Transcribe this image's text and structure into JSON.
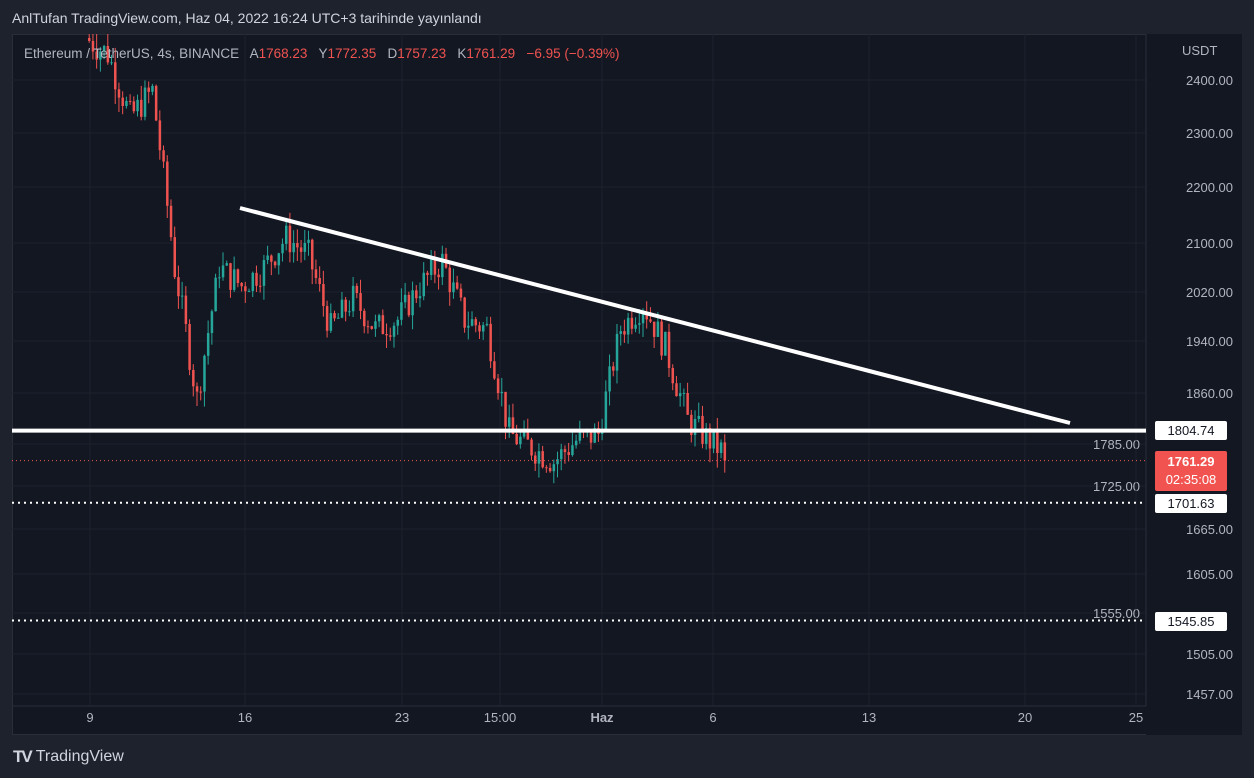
{
  "header": {
    "published": "AnlTufan TradingView.com, Haz 04, 2022 16:24 UTC+3 tarihinde yayınlandı"
  },
  "legend": {
    "symbol": "Ethereum / TetherUS, 4s, BINANCE",
    "o_label": "A",
    "o": "1768.23",
    "h_label": "Y",
    "h": "1772.35",
    "l_label": "D",
    "l": "1757.23",
    "c_label": "K",
    "c": "1761.29",
    "change": "−6.95 (−0.39%)"
  },
  "brand": {
    "name": "TradingView"
  },
  "chart_data": {
    "type": "candlestick",
    "currency": "USDT",
    "y_ticks": [
      "2400.00",
      "2300.00",
      "2200.00",
      "2100.00",
      "2020.00",
      "1940.00",
      "1860.00",
      "1785.00",
      "1725.00",
      "1665.00",
      "1605.00",
      "1555.00",
      "1505.00",
      "1457.00"
    ],
    "x_ticks": [
      "9",
      "16",
      "23",
      "15:00",
      "Haz",
      "6",
      "13",
      "20",
      "25"
    ],
    "daily_closes_from_may9": [
      2450,
      2330,
      2380,
      2060,
      1850,
      2060,
      2030,
      2060,
      2110,
      2080,
      1960,
      2010,
      1960,
      1975,
      2030,
      2070,
      1975,
      1960,
      1800,
      1780,
      1760,
      1790,
      1800,
      1960,
      2000,
      1930,
      1820,
      1790,
      1761.29
    ],
    "current_price": "1761.29",
    "countdown": "02:35:08",
    "levels": [
      {
        "label": "1804.74",
        "style": "solid"
      },
      {
        "label": "1701.63",
        "style": "dotted"
      },
      {
        "label": "1545.85",
        "style": "dotted"
      }
    ],
    "trendline": {
      "from": {
        "date": "May 16",
        "price": 2165
      },
      "to": {
        "date": "Jun 22",
        "price": 1810
      }
    },
    "colors": {
      "up": "#26a69a",
      "down": "#ef5350",
      "bg": "#131722"
    }
  }
}
